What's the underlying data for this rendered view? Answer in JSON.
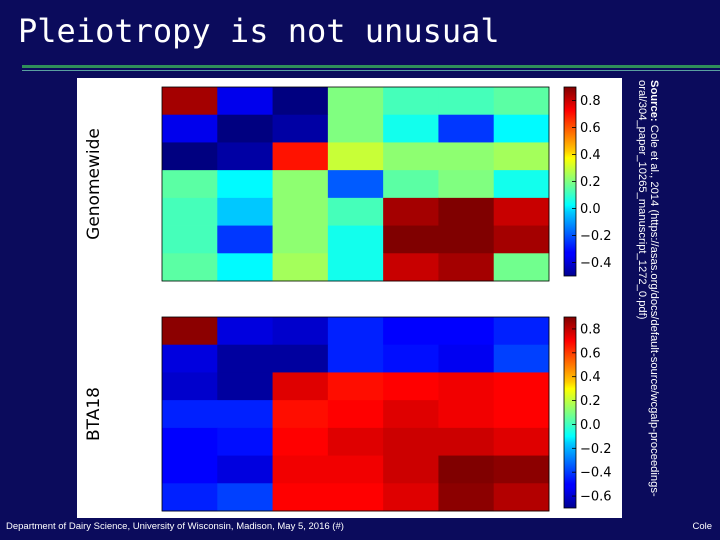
{
  "slide": {
    "title": "Pleiotropy is not unusual",
    "footer": "Department of Dairy Science, University of Wisconsin, Madison, May 5, 2016 (#)",
    "footer_right": "Cole",
    "source_label": "Source:",
    "source_text": "Cole et al., 2014 (https://asas.org/docs/default-source/wcgalp-proceedings-oral/304_paper_10265_manuscript_1272_0.pdf)"
  },
  "colors": {
    "background": "#0b0b5c",
    "title": "#ffffff",
    "rule": "#2f8f5a"
  },
  "chart_data": [
    {
      "type": "heatmap",
      "ylabel": "Genomewide",
      "colormap": "jet",
      "vmin": -0.5,
      "vmax": 0.9,
      "colorbar_ticks": [
        0.8,
        0.6,
        0.4,
        0.2,
        0.0,
        -0.2,
        -0.4
      ],
      "colorbar_tick_labels": [
        "0.8",
        "0.6",
        "0.4",
        "0.2",
        "0.0",
        "−0.2",
        "−0.4"
      ],
      "values": [
        [
          0.85,
          -0.35,
          -0.5,
          0.2,
          0.12,
          0.12,
          0.15
        ],
        [
          -0.35,
          -0.5,
          -0.45,
          0.2,
          0.05,
          -0.25,
          0.02
        ],
        [
          -0.5,
          -0.45,
          0.7,
          0.3,
          0.22,
          0.22,
          0.25
        ],
        [
          0.15,
          0.02,
          0.22,
          -0.2,
          0.15,
          0.2,
          0.05
        ],
        [
          0.12,
          -0.05,
          0.22,
          0.12,
          0.85,
          0.9,
          0.8
        ],
        [
          0.12,
          -0.25,
          0.22,
          0.05,
          0.9,
          0.98,
          0.85
        ],
        [
          0.15,
          0.02,
          0.25,
          0.05,
          0.8,
          0.85,
          0.18
        ]
      ]
    },
    {
      "type": "heatmap",
      "ylabel": "BTA18",
      "colormap": "jet",
      "vmin": -0.7,
      "vmax": 0.9,
      "colorbar_ticks": [
        0.8,
        0.6,
        0.4,
        0.2,
        0.0,
        -0.2,
        -0.4,
        -0.6
      ],
      "colorbar_tick_labels": [
        "0.8",
        "0.6",
        "0.4",
        "0.2",
        "0.0",
        "−0.2",
        "−0.4",
        "−0.6"
      ],
      "values": [
        [
          0.88,
          -0.55,
          -0.58,
          -0.45,
          -0.5,
          -0.5,
          -0.45
        ],
        [
          -0.55,
          -0.65,
          -0.65,
          -0.45,
          -0.48,
          -0.52,
          -0.4
        ],
        [
          -0.58,
          -0.65,
          0.75,
          0.68,
          0.7,
          0.72,
          0.7
        ],
        [
          -0.45,
          -0.45,
          0.68,
          0.7,
          0.75,
          0.72,
          0.7
        ],
        [
          -0.5,
          -0.48,
          0.7,
          0.75,
          0.78,
          0.78,
          0.75
        ],
        [
          -0.5,
          -0.55,
          0.72,
          0.72,
          0.78,
          0.9,
          0.88
        ],
        [
          -0.45,
          -0.4,
          0.7,
          0.7,
          0.75,
          0.88,
          0.82
        ]
      ]
    }
  ]
}
